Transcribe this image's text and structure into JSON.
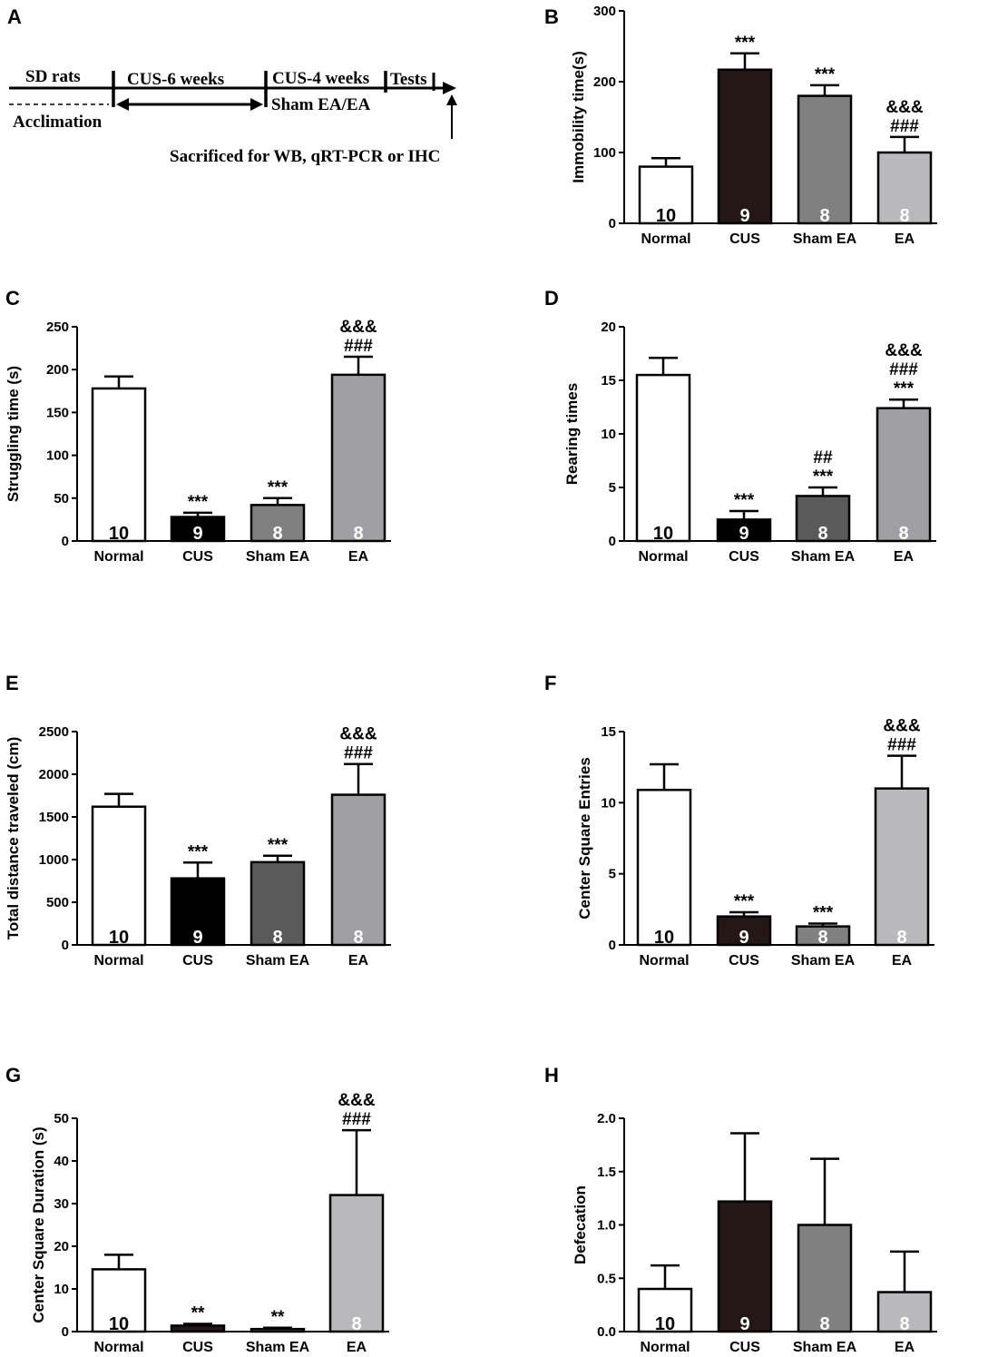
{
  "timeline": {
    "panel": "A",
    "sd_rats": "SD rats",
    "acclimation": "Acclimation",
    "cus6": "CUS-6 weeks",
    "cus4": "CUS-4 weeks",
    "sham": "Sham EA/EA",
    "tests": "Tests",
    "sacrificed": "Sacrificed for WB, qRT-PCR or IHC"
  },
  "colors": {
    "normal": "#ffffff",
    "cus": "#231815",
    "cus_dark": "#000000",
    "sham_light": "#808080",
    "sham_dark": "#5a5a5a",
    "ea_light": "#b9b9bb",
    "ea_mid": "#a0a0a4"
  },
  "chart_data": [
    {
      "panel": "B",
      "type": "bar",
      "ylabel": "Immobility time(s)",
      "categories": [
        "Normal",
        "CUS",
        "Sham EA",
        "EA"
      ],
      "values": [
        80,
        217,
        180,
        100
      ],
      "errors": [
        12,
        23,
        15,
        22
      ],
      "n": [
        "10",
        "9",
        "8",
        "8"
      ],
      "ylim": [
        0,
        300
      ],
      "yticks": [
        0,
        100,
        200,
        300
      ],
      "fills": [
        "#ffffff",
        "#231815",
        "#808080",
        "#b9b9bb"
      ],
      "significance": [
        [],
        [
          "***"
        ],
        [
          "***"
        ],
        [
          "###",
          "&&&"
        ]
      ]
    },
    {
      "panel": "C",
      "type": "bar",
      "ylabel": "Struggling time (s)",
      "categories": [
        "Normal",
        "CUS",
        "Sham EA",
        "EA"
      ],
      "values": [
        178,
        28,
        42,
        194
      ],
      "errors": [
        14,
        5,
        8,
        21
      ],
      "n": [
        "10",
        "9",
        "8",
        "8"
      ],
      "ylim": [
        0,
        250
      ],
      "yticks": [
        0,
        50,
        100,
        150,
        200,
        250
      ],
      "fills": [
        "#ffffff",
        "#000000",
        "#808080",
        "#a0a0a4"
      ],
      "significance": [
        [],
        [
          "***"
        ],
        [
          "***"
        ],
        [
          "###",
          "&&&"
        ]
      ]
    },
    {
      "panel": "D",
      "type": "bar",
      "ylabel": "Rearing times",
      "categories": [
        "Normal",
        "CUS",
        "Sham EA",
        "EA"
      ],
      "values": [
        15.5,
        2,
        4.2,
        12.4
      ],
      "errors": [
        1.6,
        0.8,
        0.8,
        0.8
      ],
      "n": [
        "10",
        "9",
        "8",
        "8"
      ],
      "ylim": [
        0,
        20
      ],
      "yticks": [
        0,
        5,
        10,
        15,
        20
      ],
      "fills": [
        "#ffffff",
        "#000000",
        "#5a5a5a",
        "#a0a0a4"
      ],
      "significance": [
        [],
        [
          "***"
        ],
        [
          "***",
          "##"
        ],
        [
          "***",
          "###",
          "&&&"
        ]
      ]
    },
    {
      "panel": "E",
      "type": "bar",
      "ylabel": "Total distance traveled (cm)",
      "categories": [
        "Normal",
        "CUS",
        "Sham EA",
        "EA"
      ],
      "values": [
        1620,
        780,
        970,
        1760
      ],
      "errors": [
        150,
        185,
        75,
        360
      ],
      "n": [
        "10",
        "9",
        "8",
        "8"
      ],
      "ylim": [
        0,
        2500
      ],
      "yticks": [
        0,
        500,
        1000,
        1500,
        2000,
        2500
      ],
      "fills": [
        "#ffffff",
        "#000000",
        "#5a5a5a",
        "#a0a0a4"
      ],
      "significance": [
        [],
        [
          "***"
        ],
        [
          "***"
        ],
        [
          "###",
          "&&&"
        ]
      ]
    },
    {
      "panel": "F",
      "type": "bar",
      "ylabel": "Center Square Entries",
      "categories": [
        "Normal",
        "CUS",
        "Sham EA",
        "EA"
      ],
      "values": [
        10.9,
        2,
        1.3,
        11
      ],
      "errors": [
        1.8,
        0.3,
        0.2,
        2.3
      ],
      "n": [
        "10",
        "9",
        "8",
        "8"
      ],
      "ylim": [
        0,
        15
      ],
      "yticks": [
        0,
        5,
        10,
        15
      ],
      "fills": [
        "#ffffff",
        "#231815",
        "#808080",
        "#b9b9bb"
      ],
      "significance": [
        [],
        [
          "***"
        ],
        [
          "***"
        ],
        [
          "###",
          "&&&"
        ]
      ]
    },
    {
      "panel": "G",
      "type": "bar",
      "ylabel": "Center Square Duration (s)",
      "categories": [
        "Normal",
        "CUS",
        "Sham EA",
        "EA"
      ],
      "values": [
        14.6,
        1.4,
        0.6,
        32
      ],
      "errors": [
        3.4,
        0.4,
        0.3,
        15.2
      ],
      "n": [
        "10",
        "",
        "",
        "8"
      ],
      "ylim": [
        0,
        50
      ],
      "yticks": [
        0,
        10,
        20,
        30,
        40,
        50
      ],
      "fills": [
        "#ffffff",
        "#231815",
        "#808080",
        "#b9b9bb"
      ],
      "significance": [
        [],
        [
          "**"
        ],
        [
          "**"
        ],
        [
          "###",
          "&&&"
        ]
      ]
    },
    {
      "panel": "H",
      "type": "bar",
      "ylabel": "Defecation",
      "categories": [
        "Normal",
        "CUS",
        "Sham EA",
        "EA"
      ],
      "values": [
        0.4,
        1.22,
        1.0,
        0.37
      ],
      "errors": [
        0.22,
        0.64,
        0.62,
        0.38
      ],
      "n": [
        "10",
        "9",
        "8",
        "8"
      ],
      "ylim": [
        0,
        2.0
      ],
      "yticks": [
        "0.0",
        "0.5",
        "1.0",
        "1.5",
        "2.0"
      ],
      "fills": [
        "#ffffff",
        "#231815",
        "#808080",
        "#b9b9bb"
      ],
      "significance": [
        [],
        [],
        [],
        []
      ]
    }
  ]
}
